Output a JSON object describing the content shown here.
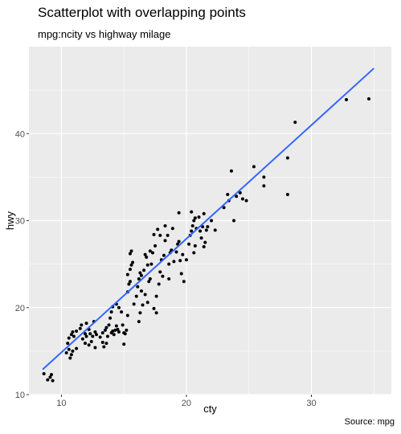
{
  "chart_data": {
    "type": "scatter",
    "title": "Scatterplot with overlapping points",
    "subtitle": "mpg:ncity vs highway milage",
    "caption": "Source: mpg",
    "xlabel": "cty",
    "ylabel": "hwy",
    "xlim": [
      7.4,
      36.4
    ],
    "ylim": [
      10,
      50
    ],
    "x_ticks": [
      10,
      20,
      30
    ],
    "y_ticks": [
      10,
      20,
      30,
      40
    ],
    "grid": true,
    "colors": {
      "panel": "#ebebeb",
      "grid": "#ffffff",
      "point": "#000000",
      "trend": "#3366ff"
    },
    "trend_line": {
      "x": [
        8.5,
        35
      ],
      "y": [
        12.9,
        47.5
      ]
    },
    "points": [
      [
        8.6,
        12.4
      ],
      [
        8.9,
        11.7
      ],
      [
        9.1,
        12.0
      ],
      [
        9.3,
        11.6
      ],
      [
        9.2,
        12.3
      ],
      [
        10.4,
        14.8
      ],
      [
        10.6,
        15.2
      ],
      [
        10.8,
        14.6
      ],
      [
        10.9,
        15.0
      ],
      [
        10.6,
        16.5
      ],
      [
        10.8,
        16.9
      ],
      [
        10.9,
        17.2
      ],
      [
        11.0,
        16.7
      ],
      [
        10.7,
        14.2
      ],
      [
        11.2,
        15.3
      ],
      [
        10.5,
        15.9
      ],
      [
        11.2,
        17.3
      ],
      [
        11.5,
        17.6
      ],
      [
        11.6,
        18.0
      ],
      [
        11.9,
        17.0
      ],
      [
        12.0,
        16.7
      ],
      [
        11.7,
        16.4
      ],
      [
        11.9,
        15.9
      ],
      [
        12.0,
        18.2
      ],
      [
        12.2,
        17.5
      ],
      [
        12.3,
        17.0
      ],
      [
        12.4,
        16.1
      ],
      [
        12.5,
        16.7
      ],
      [
        12.6,
        18.4
      ],
      [
        12.2,
        15.7
      ],
      [
        12.7,
        17.2
      ],
      [
        12.8,
        16.9
      ],
      [
        13.1,
        16.6
      ],
      [
        13.3,
        17.1
      ],
      [
        13.5,
        17.4
      ],
      [
        13.6,
        17.7
      ],
      [
        13.7,
        16.7
      ],
      [
        13.3,
        16.0
      ],
      [
        13.4,
        15.5
      ],
      [
        13.6,
        15.9
      ],
      [
        12.7,
        15.4
      ],
      [
        13.8,
        18.0
      ],
      [
        13.9,
        18.8
      ],
      [
        14.0,
        17.1
      ],
      [
        14.1,
        17.3
      ],
      [
        14.2,
        16.9
      ],
      [
        14.3,
        17.4
      ],
      [
        14.4,
        17.9
      ],
      [
        14.5,
        17.5
      ],
      [
        14.6,
        17.2
      ],
      [
        14.0,
        19.5
      ],
      [
        14.1,
        20.1
      ],
      [
        14.4,
        20.4
      ],
      [
        14.6,
        20.0
      ],
      [
        14.8,
        19.5
      ],
      [
        14.9,
        18.0
      ],
      [
        15.0,
        17.1
      ],
      [
        15.1,
        17.0
      ],
      [
        15.0,
        15.8
      ],
      [
        15.2,
        17.4
      ],
      [
        15.3,
        19.1
      ],
      [
        15.3,
        21.8
      ],
      [
        15.4,
        22.7
      ],
      [
        15.5,
        23.0
      ],
      [
        15.5,
        24.4
      ],
      [
        15.6,
        24.9
      ],
      [
        15.7,
        25.2
      ],
      [
        15.5,
        26.2
      ],
      [
        15.6,
        26.5
      ],
      [
        15.3,
        23.8
      ],
      [
        15.8,
        20.4
      ],
      [
        16.0,
        21.3
      ],
      [
        16.1,
        22.4
      ],
      [
        16.2,
        23.3
      ],
      [
        16.3,
        24.0
      ],
      [
        16.4,
        23.7
      ],
      [
        16.2,
        18.4
      ],
      [
        16.3,
        19.4
      ],
      [
        16.5,
        20.3
      ],
      [
        16.4,
        21.9
      ],
      [
        16.6,
        24.3
      ],
      [
        16.7,
        26.1
      ],
      [
        16.8,
        25.8
      ],
      [
        16.9,
        24.9
      ],
      [
        17.0,
        23.0
      ],
      [
        17.1,
        23.3
      ],
      [
        17.2,
        25.0
      ],
      [
        17.1,
        26.5
      ],
      [
        16.7,
        21.5
      ],
      [
        16.9,
        20.6
      ],
      [
        17.3,
        26.3
      ],
      [
        17.5,
        27.1
      ],
      [
        17.4,
        28.4
      ],
      [
        17.7,
        29.0
      ],
      [
        17.9,
        28.3
      ],
      [
        17.9,
        24.1
      ],
      [
        18.1,
        23.6
      ],
      [
        17.8,
        22.7
      ],
      [
        17.6,
        21.3
      ],
      [
        17.4,
        19.9
      ],
      [
        17.6,
        19.4
      ],
      [
        18.0,
        25.5
      ],
      [
        18.2,
        26.0
      ],
      [
        18.3,
        27.7
      ],
      [
        18.3,
        29.4
      ],
      [
        18.5,
        28.3
      ],
      [
        18.7,
        26.3
      ],
      [
        18.6,
        25.0
      ],
      [
        18.8,
        26.6
      ],
      [
        18.9,
        29.1
      ],
      [
        19.0,
        25.3
      ],
      [
        18.6,
        23.3
      ],
      [
        19.2,
        26.4
      ],
      [
        19.3,
        27.3
      ],
      [
        19.4,
        27.6
      ],
      [
        19.5,
        25.4
      ],
      [
        19.6,
        23.9
      ],
      [
        19.7,
        26.1
      ],
      [
        19.4,
        30.9
      ],
      [
        20.0,
        25.5
      ],
      [
        20.2,
        27.3
      ],
      [
        19.8,
        23.0
      ],
      [
        20.3,
        28.3
      ],
      [
        20.4,
        28.8
      ],
      [
        20.5,
        29.4
      ],
      [
        20.6,
        30.0
      ],
      [
        20.7,
        30.3
      ],
      [
        20.8,
        29.1
      ],
      [
        20.6,
        26.3
      ],
      [
        20.7,
        27.1
      ],
      [
        20.4,
        31.0
      ],
      [
        21.0,
        30.4
      ],
      [
        21.1,
        28.8
      ],
      [
        21.2,
        28.0
      ],
      [
        21.3,
        29.3
      ],
      [
        21.4,
        30.8
      ],
      [
        21.5,
        27.5
      ],
      [
        21.4,
        27.0
      ],
      [
        21.6,
        28.9
      ],
      [
        21.7,
        29.3
      ],
      [
        22.0,
        30.0
      ],
      [
        22.3,
        28.9
      ],
      [
        23.0,
        31.5
      ],
      [
        23.4,
        32.3
      ],
      [
        23.3,
        33.0
      ],
      [
        23.6,
        35.7
      ],
      [
        23.8,
        30.0
      ],
      [
        24.0,
        32.8
      ],
      [
        24.3,
        33.2
      ],
      [
        24.5,
        32.5
      ],
      [
        24.8,
        32.3
      ],
      [
        25.4,
        36.2
      ],
      [
        26.2,
        34.0
      ],
      [
        26.2,
        35.0
      ],
      [
        28.1,
        33.0
      ],
      [
        28.1,
        37.2
      ],
      [
        28.7,
        41.3
      ],
      [
        32.8,
        43.9
      ],
      [
        34.6,
        44.0
      ]
    ]
  }
}
